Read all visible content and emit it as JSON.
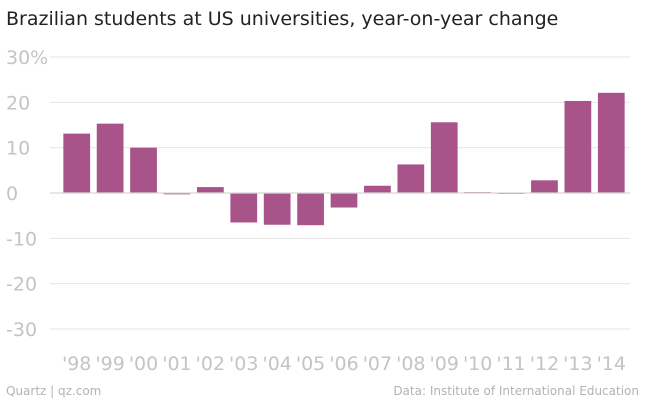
{
  "colors": {
    "bar": "#a8538a",
    "grid": "#e5e5e5",
    "zero_line": "#d6d6d6",
    "tick_text": "#c4c4c4"
  },
  "chart_data": {
    "type": "bar",
    "title": "Brazilian students at US universities, year-on-year change",
    "xlabel": "",
    "ylabel": "",
    "ylim": [
      -30,
      30
    ],
    "y_ticks": [
      30,
      20,
      10,
      0,
      -10,
      -20,
      -30
    ],
    "y_tick_labels": [
      "30%",
      "20",
      "10",
      "0",
      "-10",
      "-20",
      "-30"
    ],
    "grid": true,
    "categories": [
      "'98",
      "'99",
      "'00",
      "'01",
      "'02",
      "'03",
      "'04",
      "'05",
      "'06",
      "'07",
      "'08",
      "'09",
      "'10",
      "'11",
      "'12",
      "'13",
      "'14"
    ],
    "values": [
      13.1,
      15.3,
      10.0,
      -0.3,
      1.3,
      -6.5,
      -7.0,
      -7.1,
      -3.2,
      1.6,
      6.3,
      15.6,
      0.2,
      -0.2,
      2.8,
      20.3,
      22.1
    ]
  },
  "footer": {
    "source_left": "Quartz | qz.com",
    "source_right": "Data: Institute of International Education"
  }
}
